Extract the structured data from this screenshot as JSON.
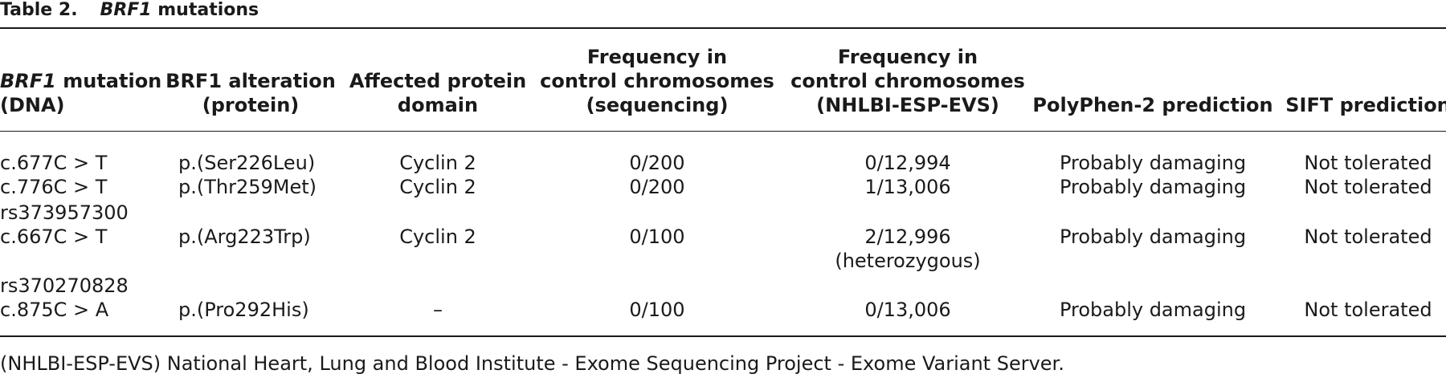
{
  "caption": {
    "number": "Table 2.",
    "gene": "BRF1",
    "rest": " mutations"
  },
  "headers": {
    "dna": {
      "line1_gene": "BRF1",
      "line1_rest": " mutation",
      "line2": "(DNA)"
    },
    "protein": {
      "line1": "BRF1 alteration",
      "line2": "(protein)"
    },
    "domain": {
      "line1": "Affected protein",
      "line2": "domain"
    },
    "freq_seq": {
      "line1": "Frequency in",
      "line2": "control chromosomes",
      "line3": "(sequencing)"
    },
    "freq_esp": {
      "line1": "Frequency in",
      "line2": "control chromosomes",
      "line3": "(NHLBI-ESP-EVS)"
    },
    "polyphen": {
      "line1": "PolyPhen-2 prediction"
    },
    "sift": {
      "line1": "SIFT prediction"
    }
  },
  "rows": [
    {
      "dna": "c.677C > T",
      "protein": "p.(Ser226Leu)",
      "domain": "Cyclin 2",
      "freq_seq": "0/200",
      "freq_esp": "0/12,994",
      "polyphen": "Probably damaging",
      "sift": "Not tolerated"
    },
    {
      "dna": "c.776C > T",
      "protein": "p.(Thr259Met)",
      "domain": "Cyclin 2",
      "freq_seq": "0/200",
      "freq_esp": "1/13,006",
      "polyphen": "Probably damaging",
      "sift": "Not tolerated"
    },
    {
      "rsid": "rs373957300",
      "dna": "c.667C > T",
      "protein": "p.(Arg223Trp)",
      "domain": "Cyclin 2",
      "freq_seq": "0/100",
      "freq_esp": "2/12,996",
      "freq_esp_note": "(heterozygous)",
      "polyphen": "Probably damaging",
      "sift": "Not tolerated"
    },
    {
      "rsid": "rs370270828",
      "dna": "c.875C > A",
      "protein": "p.(Pro292His)",
      "domain": "–",
      "freq_seq": "0/100",
      "freq_esp": "0/13,006",
      "polyphen": "Probably damaging",
      "sift": "Not tolerated"
    }
  ],
  "footnote": "(NHLBI-ESP-EVS) National Heart, Lung and Blood Institute - Exome Sequencing Project - Exome Variant Server."
}
